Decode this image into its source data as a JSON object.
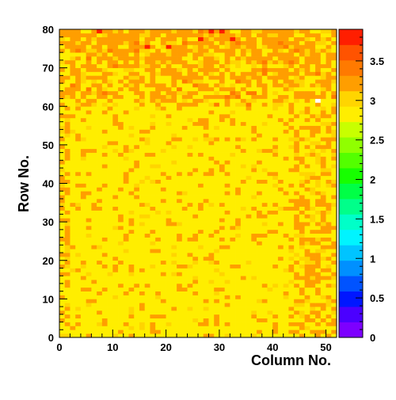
{
  "chart_data": {
    "type": "heatmap",
    "xlabel": "Column No.",
    "ylabel": "Row No.",
    "xlim": [
      0,
      52
    ],
    "ylim": [
      0,
      80
    ],
    "x_ticks": [
      "0",
      "10",
      "20",
      "30",
      "40",
      "50"
    ],
    "y_ticks": [
      "0",
      "10",
      "20",
      "30",
      "40",
      "50",
      "60",
      "70",
      "80"
    ],
    "z_range": [
      0,
      3.9
    ],
    "z_ticks": [
      "0",
      "0.5",
      "1",
      "1.5",
      "2",
      "2.5",
      "3",
      "3.5"
    ],
    "grid": false,
    "colormap": [
      "#7d00ff",
      "#4b00ff",
      "#0017ff",
      "#0053ff",
      "#0090ff",
      "#00c4ff",
      "#00f4ff",
      "#00ffc8",
      "#00ff8a",
      "#00ff46",
      "#17ff00",
      "#53ff00",
      "#90ff00",
      "#c8ff00",
      "#ffee00",
      "#ffd500",
      "#ff9e00",
      "#ff7a00",
      "#ff5300",
      "#ff1e00"
    ],
    "cell_colors": {
      "level_3": "#ffee00",
      "level_3_2": "#ffd500",
      "level_3_4": "#ff9e00",
      "level_3_6": "#ff7a00",
      "level_3_8": "#ff1e00",
      "anomaly": "#ffffff"
    },
    "rows": 80,
    "cols": 52,
    "notes": "Per-channel values cluster near 3 (yellow) with about 3.4 (orange) scattered, denser at rows >60 and near column 46; a few red (about 3.7–3.9) near top rows; one white cell near column 48, row 61."
  }
}
